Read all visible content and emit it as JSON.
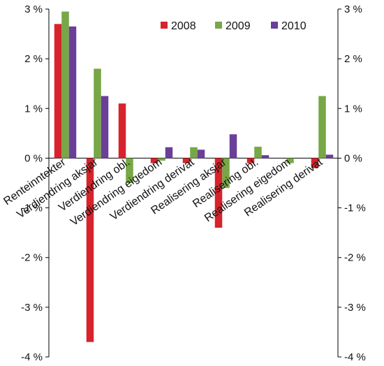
{
  "chart_data": {
    "type": "bar",
    "title": "",
    "xlabel": "",
    "ylabel": "",
    "ylim": [
      -4,
      3
    ],
    "yticks": [
      3,
      2,
      1,
      0,
      -1,
      -2,
      -3,
      -4
    ],
    "tick_suffix": " %",
    "grid": false,
    "legend_position": "top-right",
    "categories": [
      "Renteinntekter",
      "Verdiendring aksjar",
      "Verdiendring obl.",
      "Verdiendring eigedom",
      "Verdiendring derivat",
      "Realisering aksjar",
      "Realisering obl.",
      "Realisering eigedom",
      "Realisering derivat"
    ],
    "series": [
      {
        "name": "2008",
        "color": "#d7232b",
        "values": [
          2.7,
          -3.7,
          1.1,
          -0.1,
          -0.1,
          -1.4,
          -0.1,
          0.0,
          -0.2
        ]
      },
      {
        "name": "2009",
        "color": "#77a746",
        "values": [
          2.95,
          1.8,
          -0.5,
          -0.05,
          0.22,
          -0.6,
          0.23,
          -0.1,
          1.25
        ]
      },
      {
        "name": "2010",
        "color": "#6a3f99",
        "values": [
          2.65,
          1.25,
          0.0,
          0.22,
          0.17,
          0.48,
          0.06,
          0.0,
          0.07
        ]
      }
    ]
  }
}
